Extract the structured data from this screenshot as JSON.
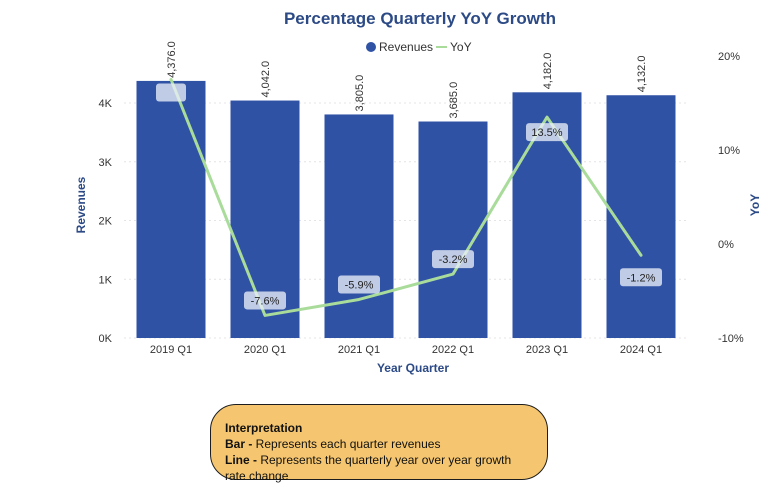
{
  "chart_data": {
    "type": "bar",
    "title": "Percentage Quarterly YoY Growth",
    "xlabel": "Year Quarter",
    "ylabel": "Revenues",
    "y2label": "YoY",
    "categories": [
      "2019 Q1",
      "2020 Q1",
      "2021 Q1",
      "2022 Q1",
      "2023 Q1",
      "2024 Q1"
    ],
    "series": [
      {
        "name": "Revenues",
        "kind": "bar",
        "axis": "left",
        "values": [
          4376.0,
          4042.0,
          3805.0,
          3685.0,
          4182.0,
          4132.0
        ],
        "labels": [
          "4,376.0",
          "4,042.0",
          "3,805.0",
          "3,685.0",
          "4,182.0",
          "4,132.0"
        ],
        "color": "#2f52a5"
      },
      {
        "name": "YoY",
        "kind": "line",
        "axis": "right",
        "values": [
          17.5,
          -7.6,
          -5.9,
          -3.2,
          13.5,
          -1.2
        ],
        "labels": [
          "",
          "-7.6%",
          "-5.9%",
          "-3.2%",
          "13.5%",
          "-1.2%"
        ],
        "color": "#a9dc9a"
      }
    ],
    "ylim": [
      0,
      4800
    ],
    "yticks": [
      0,
      1000,
      2000,
      3000,
      4000
    ],
    "ytick_labels": [
      "0K",
      "1K",
      "2K",
      "3K",
      "4K"
    ],
    "y2lim": [
      -10,
      20
    ],
    "y2ticks": [
      -10,
      0,
      10,
      20
    ],
    "y2tick_labels": [
      "-10%",
      "0%",
      "10%",
      "20%"
    ],
    "legend_position": "top-center",
    "grid": true
  },
  "note": {
    "title": "Interpretation",
    "bar_key": "Bar -",
    "bar_text": " Represents each quarter revenues",
    "line_key": "Line -",
    "line_text": " Represents the quarterly year over year growth rate change"
  }
}
